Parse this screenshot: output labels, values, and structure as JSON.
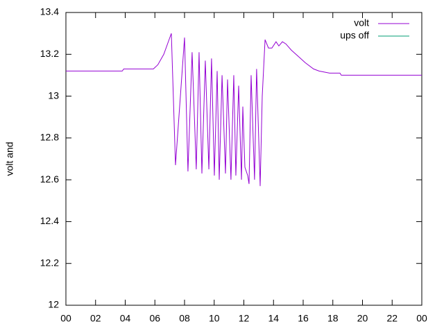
{
  "chart_data": {
    "type": "line",
    "ylabel": "volt and",
    "x": [
      0,
      3.8,
      3.9,
      5.9,
      6.2,
      6.6,
      7.11,
      7.39,
      8.0,
      8.23,
      8.51,
      8.79,
      8.98,
      9.17,
      9.4,
      9.64,
      9.82,
      10.01,
      10.2,
      10.34,
      10.53,
      10.76,
      10.9,
      11.13,
      11.32,
      11.46,
      11.65,
      11.84,
      11.93,
      12.07,
      12.26,
      12.35,
      12.49,
      12.72,
      12.86,
      13.1,
      13.24,
      13.43,
      13.66,
      13.89,
      14.17,
      14.36,
      14.6,
      14.83,
      15.2,
      15.67,
      16.14,
      16.7,
      17.07,
      17.78,
      18.48,
      18.57,
      24
    ],
    "series": [
      {
        "name": "volt",
        "color": "#9400d3",
        "values": [
          13.12,
          13.12,
          13.13,
          13.13,
          13.15,
          13.2,
          13.3,
          12.67,
          13.28,
          12.64,
          13.21,
          12.65,
          13.21,
          12.63,
          13.17,
          12.65,
          13.18,
          12.62,
          13.12,
          12.6,
          13.1,
          12.63,
          13.08,
          12.6,
          13.1,
          12.62,
          13.05,
          12.6,
          12.95,
          12.66,
          12.62,
          12.58,
          13.1,
          12.6,
          13.13,
          12.57,
          13.0,
          13.27,
          13.23,
          13.23,
          13.26,
          13.24,
          13.26,
          13.25,
          13.22,
          13.19,
          13.16,
          13.13,
          13.12,
          13.11,
          13.11,
          13.1,
          13.1
        ]
      },
      {
        "name": "ups off",
        "color": "#009e73",
        "values": [
          null,
          null,
          null,
          null,
          null,
          null,
          null,
          null,
          null,
          null,
          null,
          null,
          null,
          null,
          null,
          null,
          null,
          null,
          null,
          null,
          null,
          null,
          null,
          null,
          null,
          null,
          null,
          null,
          null,
          null,
          null,
          null,
          null,
          null,
          null,
          null,
          null,
          null,
          null,
          null,
          null,
          null,
          null,
          null,
          null,
          null,
          null,
          null,
          null,
          null,
          null,
          null,
          null
        ]
      }
    ],
    "xlim": [
      0,
      24
    ],
    "xticks": [
      {
        "value": 0,
        "label": "00"
      },
      {
        "value": 2,
        "label": "02"
      },
      {
        "value": 4,
        "label": "04"
      },
      {
        "value": 6,
        "label": "06"
      },
      {
        "value": 8,
        "label": "08"
      },
      10,
      12,
      14,
      16,
      18,
      20,
      22,
      {
        "value": 24,
        "label": "00"
      }
    ],
    "ylim": [
      12,
      13.4
    ],
    "yticks": [
      12,
      12.2,
      12.4,
      12.6,
      12.8,
      13,
      13.2,
      13.4
    ],
    "legend": "top-right"
  }
}
